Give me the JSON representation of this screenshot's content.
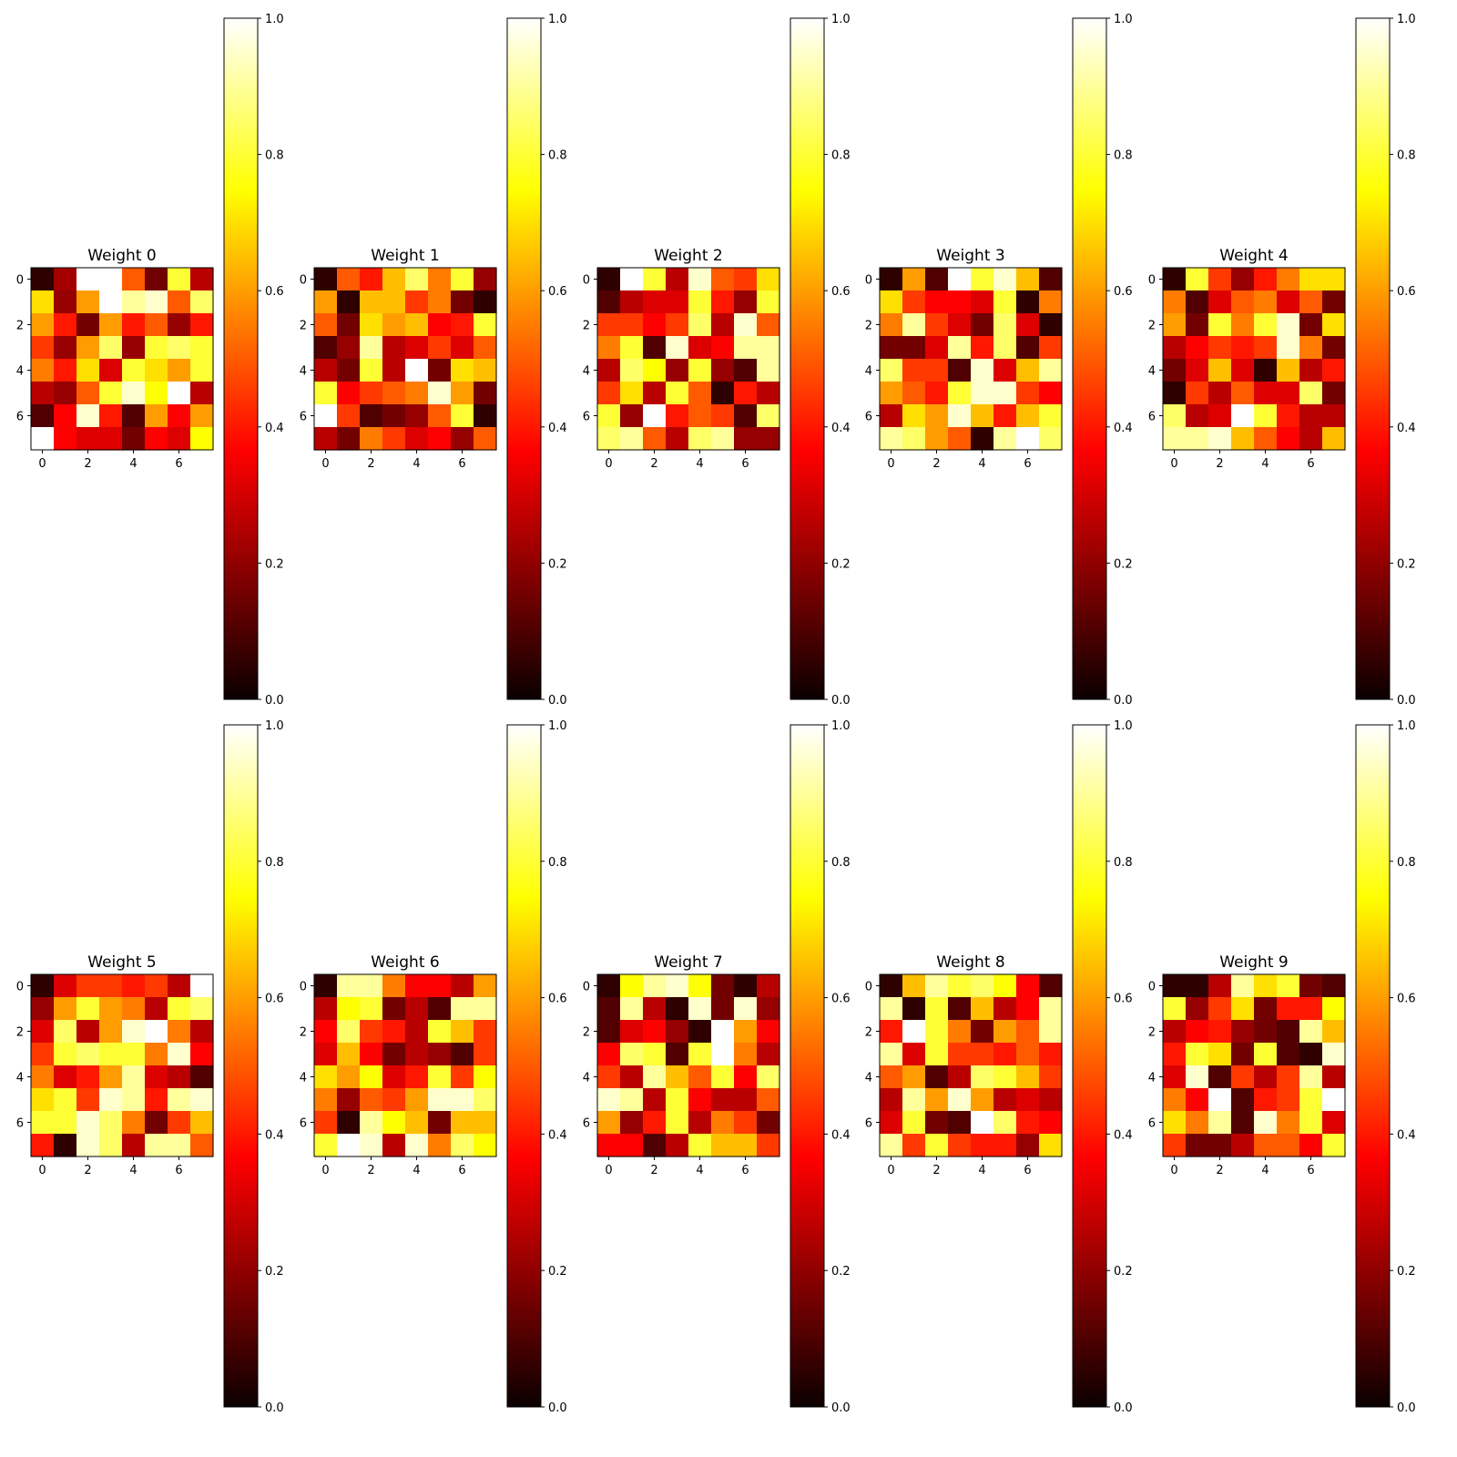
{
  "chart_data": [
    {
      "type": "heatmap",
      "title": "Weight 0",
      "xticks": [
        "0",
        "2",
        "4",
        "6"
      ],
      "yticks": [
        "0",
        "2",
        "4",
        "6"
      ],
      "colorbar": {
        "min": 0.0,
        "max": 1.0,
        "ticks": [
          "0.0",
          "0.2",
          "0.4",
          "0.6",
          "0.8",
          "1.0"
        ],
        "colormap": "hot"
      },
      "matrix": [
        [
          0.05,
          0.22,
          1.0,
          1.0,
          0.5,
          0.15,
          0.8,
          0.25
        ],
        [
          0.7,
          0.2,
          0.6,
          1.0,
          0.9,
          0.95,
          0.5,
          0.85
        ],
        [
          0.6,
          0.4,
          0.15,
          0.6,
          0.4,
          0.5,
          0.2,
          0.4
        ],
        [
          0.45,
          0.2,
          0.6,
          0.85,
          0.2,
          0.8,
          0.85,
          0.8
        ],
        [
          0.55,
          0.4,
          0.7,
          0.3,
          0.8,
          0.7,
          0.6,
          0.8
        ],
        [
          0.25,
          0.2,
          0.5,
          0.8,
          0.95,
          0.75,
          1.0,
          0.25
        ],
        [
          0.1,
          0.35,
          0.95,
          0.4,
          0.1,
          0.6,
          0.35,
          0.6
        ],
        [
          1.0,
          0.35,
          0.3,
          0.3,
          0.15,
          0.35,
          0.3,
          0.75
        ]
      ]
    },
    {
      "type": "heatmap",
      "title": "Weight 1",
      "xticks": [
        "0",
        "2",
        "4",
        "6"
      ],
      "yticks": [
        "0",
        "2",
        "4",
        "6"
      ],
      "colorbar": {
        "min": 0.0,
        "max": 1.0,
        "ticks": [
          "0.0",
          "0.2",
          "0.4",
          "0.6",
          "0.8",
          "1.0"
        ],
        "colormap": "hot"
      },
      "matrix": [
        [
          0.05,
          0.5,
          0.4,
          0.65,
          0.85,
          0.55,
          0.8,
          0.2
        ],
        [
          0.6,
          0.05,
          0.65,
          0.65,
          0.45,
          0.55,
          0.15,
          0.05
        ],
        [
          0.5,
          0.15,
          0.7,
          0.6,
          0.65,
          0.35,
          0.4,
          0.8
        ],
        [
          0.1,
          0.2,
          0.9,
          0.25,
          0.3,
          0.45,
          0.3,
          0.5
        ],
        [
          0.25,
          0.15,
          0.8,
          0.25,
          1.0,
          0.15,
          0.7,
          0.65
        ],
        [
          0.8,
          0.35,
          0.45,
          0.5,
          0.55,
          0.95,
          0.6,
          0.15
        ],
        [
          1.0,
          0.45,
          0.1,
          0.15,
          0.2,
          0.5,
          0.8,
          0.05
        ],
        [
          0.25,
          0.15,
          0.55,
          0.45,
          0.3,
          0.35,
          0.2,
          0.5
        ]
      ]
    },
    {
      "type": "heatmap",
      "title": "Weight 2",
      "xticks": [
        "0",
        "2",
        "4",
        "6"
      ],
      "yticks": [
        "0",
        "2",
        "4",
        "6"
      ],
      "colorbar": {
        "min": 0.0,
        "max": 1.0,
        "ticks": [
          "0.0",
          "0.2",
          "0.4",
          "0.6",
          "0.8",
          "1.0"
        ],
        "colormap": "hot"
      },
      "matrix": [
        [
          0.05,
          1.0,
          0.8,
          0.25,
          0.95,
          0.5,
          0.45,
          0.7
        ],
        [
          0.1,
          0.25,
          0.3,
          0.3,
          0.8,
          0.4,
          0.2,
          0.8
        ],
        [
          0.45,
          0.45,
          0.35,
          0.45,
          0.85,
          0.25,
          0.95,
          0.5
        ],
        [
          0.55,
          0.8,
          0.1,
          0.95,
          0.3,
          0.35,
          0.9,
          0.9
        ],
        [
          0.25,
          0.85,
          0.75,
          0.2,
          0.8,
          0.2,
          0.1,
          0.9
        ],
        [
          0.45,
          0.7,
          0.25,
          0.8,
          0.5,
          0.05,
          0.4,
          0.25
        ],
        [
          0.8,
          0.2,
          1.0,
          0.4,
          0.5,
          0.45,
          0.1,
          0.85
        ],
        [
          0.85,
          0.9,
          0.5,
          0.25,
          0.85,
          0.9,
          0.2,
          0.2
        ]
      ]
    },
    {
      "type": "heatmap",
      "title": "Weight 3",
      "xticks": [
        "0",
        "2",
        "4",
        "6"
      ],
      "yticks": [
        "0",
        "2",
        "4",
        "6"
      ],
      "colorbar": {
        "min": 0.0,
        "max": 1.0,
        "ticks": [
          "0.0",
          "0.2",
          "0.4",
          "0.6",
          "0.8",
          "1.0"
        ],
        "colormap": "hot"
      },
      "matrix": [
        [
          0.05,
          0.6,
          0.1,
          1.0,
          0.8,
          0.95,
          0.65,
          0.1
        ],
        [
          0.7,
          0.45,
          0.35,
          0.35,
          0.3,
          0.8,
          0.05,
          0.55
        ],
        [
          0.55,
          0.9,
          0.45,
          0.3,
          0.15,
          0.85,
          0.3,
          0.05
        ],
        [
          0.15,
          0.15,
          0.3,
          0.9,
          0.4,
          0.85,
          0.1,
          0.45
        ],
        [
          0.85,
          0.45,
          0.45,
          0.1,
          0.95,
          0.3,
          0.65,
          0.9
        ],
        [
          0.6,
          0.5,
          0.4,
          0.8,
          0.95,
          0.95,
          0.45,
          0.35
        ],
        [
          0.25,
          0.7,
          0.6,
          0.95,
          0.65,
          0.4,
          0.65,
          0.8
        ],
        [
          0.9,
          0.85,
          0.6,
          0.5,
          0.05,
          0.9,
          1.0,
          0.85
        ]
      ]
    },
    {
      "type": "heatmap",
      "title": "Weight 4",
      "xticks": [
        "0",
        "2",
        "4",
        "6"
      ],
      "yticks": [
        "0",
        "2",
        "4",
        "6"
      ],
      "colorbar": {
        "min": 0.0,
        "max": 1.0,
        "ticks": [
          "0.0",
          "0.2",
          "0.4",
          "0.6",
          "0.8",
          "1.0"
        ],
        "colormap": "hot"
      },
      "matrix": [
        [
          0.05,
          0.8,
          0.45,
          0.2,
          0.4,
          0.55,
          0.7,
          0.7
        ],
        [
          0.55,
          0.1,
          0.3,
          0.5,
          0.55,
          0.3,
          0.5,
          0.15
        ],
        [
          0.6,
          0.15,
          0.8,
          0.55,
          0.8,
          0.95,
          0.15,
          0.7
        ],
        [
          0.25,
          0.35,
          0.45,
          0.4,
          0.45,
          0.95,
          0.55,
          0.15
        ],
        [
          0.15,
          0.3,
          0.65,
          0.3,
          0.05,
          0.65,
          0.25,
          0.4
        ],
        [
          0.05,
          0.45,
          0.25,
          0.5,
          0.3,
          0.3,
          0.85,
          0.15
        ],
        [
          0.85,
          0.25,
          0.3,
          1.0,
          0.8,
          0.4,
          0.25,
          0.25
        ],
        [
          0.9,
          0.9,
          0.95,
          0.65,
          0.5,
          0.35,
          0.25,
          0.65
        ]
      ]
    },
    {
      "type": "heatmap",
      "title": "Weight 5",
      "xticks": [
        "0",
        "2",
        "4",
        "6"
      ],
      "yticks": [
        "0",
        "2",
        "4",
        "6"
      ],
      "colorbar": {
        "min": 0.0,
        "max": 1.0,
        "ticks": [
          "0.0",
          "0.2",
          "0.4",
          "0.6",
          "0.8",
          "1.0"
        ],
        "colormap": "hot"
      },
      "matrix": [
        [
          0.05,
          0.3,
          0.45,
          0.45,
          0.4,
          0.45,
          0.25,
          1.0
        ],
        [
          0.2,
          0.6,
          0.8,
          0.6,
          0.55,
          0.25,
          0.8,
          0.85
        ],
        [
          0.3,
          0.85,
          0.25,
          0.6,
          0.95,
          1.0,
          0.55,
          0.25
        ],
        [
          0.45,
          0.8,
          0.85,
          0.8,
          0.8,
          0.55,
          0.95,
          0.35
        ],
        [
          0.55,
          0.3,
          0.4,
          0.6,
          0.9,
          0.3,
          0.25,
          0.1
        ],
        [
          0.7,
          0.8,
          0.45,
          0.95,
          0.9,
          0.4,
          0.9,
          0.95
        ],
        [
          0.8,
          0.8,
          0.95,
          0.85,
          0.55,
          0.15,
          0.45,
          0.65
        ],
        [
          0.4,
          0.05,
          0.95,
          0.85,
          0.25,
          0.9,
          0.9,
          0.5
        ]
      ]
    },
    {
      "type": "heatmap",
      "title": "Weight 6",
      "xticks": [
        "0",
        "2",
        "4",
        "6"
      ],
      "yticks": [
        "0",
        "2",
        "4",
        "6"
      ],
      "colorbar": {
        "min": 0.0,
        "max": 1.0,
        "ticks": [
          "0.0",
          "0.2",
          "0.4",
          "0.6",
          "0.8",
          "1.0"
        ],
        "colormap": "hot"
      },
      "matrix": [
        [
          0.05,
          0.9,
          0.9,
          0.55,
          0.35,
          0.35,
          0.25,
          0.6
        ],
        [
          0.25,
          0.75,
          0.8,
          0.15,
          0.25,
          0.1,
          0.9,
          0.9
        ],
        [
          0.35,
          0.85,
          0.45,
          0.4,
          0.25,
          0.8,
          0.65,
          0.45
        ],
        [
          0.3,
          0.65,
          0.35,
          0.15,
          0.25,
          0.2,
          0.1,
          0.45
        ],
        [
          0.7,
          0.6,
          0.75,
          0.3,
          0.4,
          0.8,
          0.45,
          0.75
        ],
        [
          0.55,
          0.2,
          0.5,
          0.45,
          0.6,
          0.95,
          0.95,
          0.85
        ],
        [
          0.45,
          0.05,
          0.9,
          0.75,
          0.65,
          0.15,
          0.65,
          0.65
        ],
        [
          0.8,
          1.0,
          0.95,
          0.25,
          0.95,
          0.55,
          0.85,
          0.75
        ]
      ]
    },
    {
      "type": "heatmap",
      "title": "Weight 7",
      "xticks": [
        "0",
        "2",
        "4",
        "6"
      ],
      "yticks": [
        "0",
        "2",
        "4",
        "6"
      ],
      "colorbar": {
        "min": 0.0,
        "max": 1.0,
        "ticks": [
          "0.0",
          "0.2",
          "0.4",
          "0.6",
          "0.8",
          "1.0"
        ],
        "colormap": "hot"
      },
      "matrix": [
        [
          0.05,
          0.75,
          0.9,
          0.95,
          0.75,
          0.15,
          0.05,
          0.25
        ],
        [
          0.1,
          0.9,
          0.25,
          0.05,
          0.95,
          0.15,
          0.95,
          0.2
        ],
        [
          0.1,
          0.3,
          0.35,
          0.2,
          0.05,
          1.0,
          0.6,
          0.35
        ],
        [
          0.35,
          0.85,
          0.8,
          0.1,
          0.8,
          1.0,
          0.55,
          0.25
        ],
        [
          0.45,
          0.25,
          0.9,
          0.65,
          0.5,
          0.8,
          0.35,
          0.85
        ],
        [
          0.95,
          0.9,
          0.25,
          0.8,
          0.35,
          0.25,
          0.25,
          0.5
        ],
        [
          0.6,
          0.2,
          0.4,
          0.8,
          0.25,
          0.55,
          0.45,
          0.15
        ],
        [
          0.35,
          0.35,
          0.1,
          0.25,
          0.8,
          0.65,
          0.65,
          0.45
        ]
      ]
    },
    {
      "type": "heatmap",
      "title": "Weight 8",
      "xticks": [
        "0",
        "2",
        "4",
        "6"
      ],
      "yticks": [
        "0",
        "2",
        "4",
        "6"
      ],
      "colorbar": {
        "min": 0.0,
        "max": 1.0,
        "ticks": [
          "0.0",
          "0.2",
          "0.4",
          "0.6",
          "0.8",
          "1.0"
        ],
        "colormap": "hot"
      },
      "matrix": [
        [
          0.05,
          0.65,
          0.9,
          0.8,
          0.85,
          0.75,
          0.35,
          0.1
        ],
        [
          0.9,
          0.05,
          0.8,
          0.1,
          0.65,
          0.25,
          0.35,
          0.9
        ],
        [
          0.4,
          1.0,
          0.8,
          0.55,
          0.15,
          0.6,
          0.5,
          0.9
        ],
        [
          0.9,
          0.3,
          0.8,
          0.45,
          0.45,
          0.4,
          0.5,
          0.4
        ],
        [
          0.5,
          0.6,
          0.1,
          0.25,
          0.85,
          0.8,
          0.65,
          0.45
        ],
        [
          0.25,
          0.9,
          0.6,
          0.95,
          0.6,
          0.25,
          0.3,
          0.25
        ],
        [
          0.3,
          0.8,
          0.15,
          0.1,
          1.0,
          0.85,
          0.4,
          0.35
        ],
        [
          0.9,
          0.45,
          0.8,
          0.45,
          0.4,
          0.4,
          0.2,
          0.7
        ]
      ]
    },
    {
      "type": "heatmap",
      "title": "Weight 9",
      "xticks": [
        "0",
        "2",
        "4",
        "6"
      ],
      "yticks": [
        "0",
        "2",
        "4",
        "6"
      ],
      "colorbar": {
        "min": 0.0,
        "max": 1.0,
        "ticks": [
          "0.0",
          "0.2",
          "0.4",
          "0.6",
          "0.8",
          "1.0"
        ],
        "colormap": "hot"
      },
      "matrix": [
        [
          0.05,
          0.05,
          0.25,
          0.9,
          0.7,
          0.8,
          0.15,
          0.1
        ],
        [
          0.8,
          0.2,
          0.45,
          0.7,
          0.15,
          0.4,
          0.4,
          0.75
        ],
        [
          0.25,
          0.35,
          0.4,
          0.2,
          0.15,
          0.1,
          0.9,
          0.65
        ],
        [
          0.4,
          0.8,
          0.7,
          0.15,
          0.8,
          0.1,
          0.05,
          0.95
        ],
        [
          0.3,
          0.95,
          0.1,
          0.45,
          0.25,
          0.45,
          0.9,
          0.25
        ],
        [
          0.55,
          0.35,
          1.0,
          0.1,
          0.4,
          0.45,
          0.8,
          1.0
        ],
        [
          0.7,
          0.55,
          0.9,
          0.1,
          0.95,
          0.55,
          0.8,
          0.3
        ],
        [
          0.45,
          0.15,
          0.15,
          0.25,
          0.5,
          0.5,
          0.35,
          0.8
        ]
      ]
    }
  ]
}
